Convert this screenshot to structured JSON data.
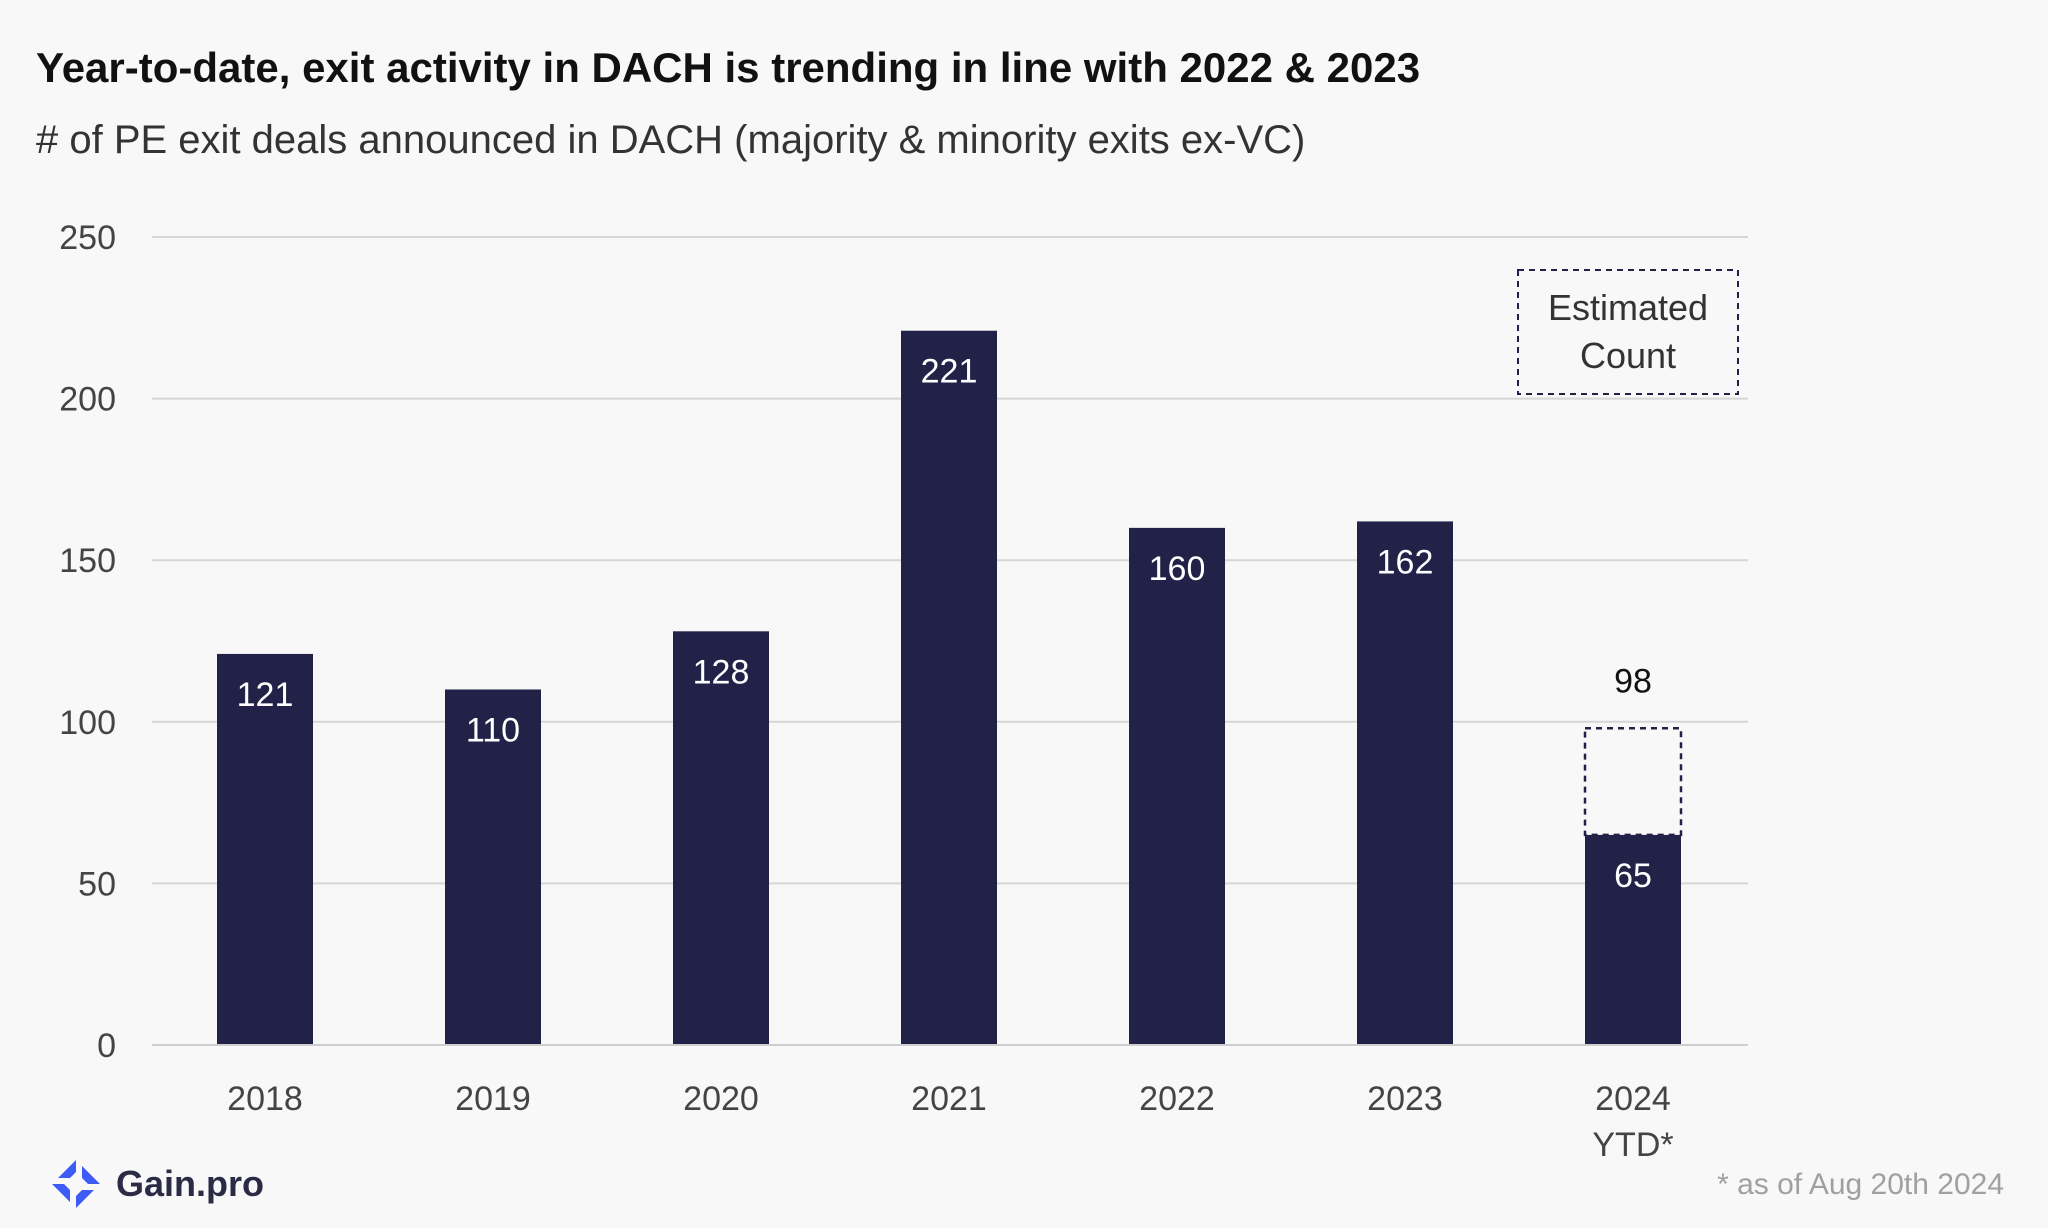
{
  "chart_data": {
    "type": "bar",
    "title": "Year-to-date, exit activity in DACH is trending in line with 2022 & 2023",
    "subtitle": "# of PE exit deals announced in DACH (majority & minority exits ex-VC)",
    "categories": [
      [
        "2018"
      ],
      [
        "2019"
      ],
      [
        "2020"
      ],
      [
        "2021"
      ],
      [
        "2022"
      ],
      [
        "2023"
      ],
      [
        "2024",
        "YTD*"
      ]
    ],
    "values": [
      121,
      110,
      128,
      221,
      160,
      162,
      65
    ],
    "estimated": {
      "category": "2024 YTD*",
      "value": 98,
      "label": "98"
    },
    "legend": {
      "label_lines": [
        "Estimated",
        "Count"
      ],
      "placement": "top-right",
      "style": "dashed-box"
    },
    "ylim": [
      0,
      250
    ],
    "yticks": [
      0,
      50,
      100,
      150,
      200,
      250
    ],
    "grid": true,
    "bar_color": "#222249",
    "grid_color": "#d6d6d6"
  },
  "brand": {
    "name": "Gain.pro",
    "logo_icon": "gain-pro-logo-icon",
    "logo_color": "#3d5bf5"
  },
  "footnote": "* as of Aug  20th 2024"
}
